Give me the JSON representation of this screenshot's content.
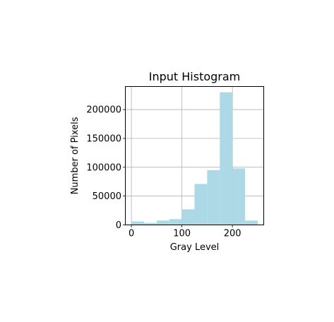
{
  "chart_data": {
    "type": "bar",
    "title": "Input Histogram",
    "xlabel": "Gray Level",
    "ylabel": "Number of Pixels",
    "xlim": [
      -12,
      262
    ],
    "ylim": [
      0,
      240000
    ],
    "xticks": [
      0,
      100,
      200
    ],
    "yticks": [
      0,
      50000,
      100000,
      150000,
      200000
    ],
    "grid": true,
    "bar_color": "#add8e6",
    "bins": [
      {
        "start": 0,
        "end": 25,
        "value": 6000
      },
      {
        "start": 25,
        "end": 50,
        "value": 3500
      },
      {
        "start": 50,
        "end": 75,
        "value": 7500
      },
      {
        "start": 75,
        "end": 100,
        "value": 10000
      },
      {
        "start": 100,
        "end": 125,
        "value": 27000
      },
      {
        "start": 125,
        "end": 150,
        "value": 71000
      },
      {
        "start": 150,
        "end": 175,
        "value": 95000
      },
      {
        "start": 175,
        "end": 200,
        "value": 230000
      },
      {
        "start": 200,
        "end": 225,
        "value": 98000
      },
      {
        "start": 225,
        "end": 250,
        "value": 7500
      }
    ]
  }
}
